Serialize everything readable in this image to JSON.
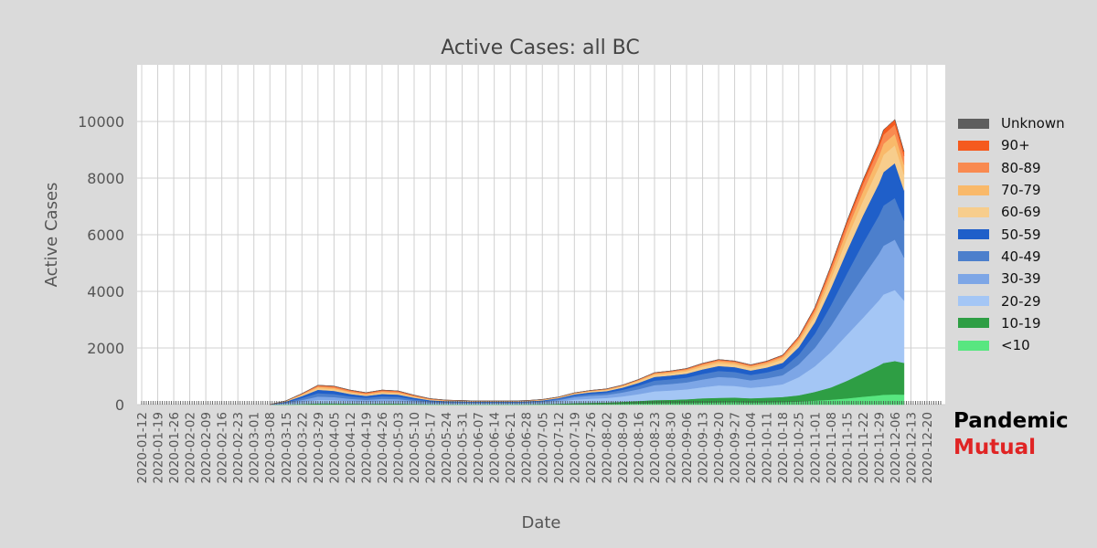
{
  "chart_data": {
    "type": "area",
    "stacked": true,
    "title": "Active Cases: all BC",
    "xlabel": "Date",
    "ylabel": "Active Cases",
    "ylim": [
      0,
      12000
    ],
    "y_ticks": [
      0,
      2000,
      4000,
      6000,
      8000,
      10000
    ],
    "x_start": "2020-01-12",
    "x_end": "2020-12-26",
    "x_tick_labels": [
      "2020-01-12",
      "2020-01-19",
      "2020-01-26",
      "2020-02-02",
      "2020-02-09",
      "2020-02-16",
      "2020-02-23",
      "2020-03-01",
      "2020-03-08",
      "2020-03-15",
      "2020-03-22",
      "2020-03-29",
      "2020-04-05",
      "2020-04-12",
      "2020-04-19",
      "2020-04-26",
      "2020-05-03",
      "2020-05-10",
      "2020-05-17",
      "2020-05-24",
      "2020-05-31",
      "2020-06-07",
      "2020-06-14",
      "2020-06-21",
      "2020-06-28",
      "2020-07-05",
      "2020-07-12",
      "2020-07-19",
      "2020-07-26",
      "2020-08-02",
      "2020-08-09",
      "2020-08-16",
      "2020-08-23",
      "2020-08-30",
      "2020-09-06",
      "2020-09-13",
      "2020-09-20",
      "2020-09-27",
      "2020-10-04",
      "2020-10-11",
      "2020-10-18",
      "2020-10-25",
      "2020-11-01",
      "2020-11-08",
      "2020-11-15",
      "2020-11-22",
      "2020-11-29",
      "2020-12-06",
      "2020-12-13",
      "2020-12-20"
    ],
    "grid": true,
    "legend_position": "right",
    "x_dates": [
      "2020-03-08",
      "2020-03-15",
      "2020-03-22",
      "2020-03-29",
      "2020-04-05",
      "2020-04-12",
      "2020-04-19",
      "2020-04-26",
      "2020-05-03",
      "2020-05-10",
      "2020-05-17",
      "2020-05-24",
      "2020-05-31",
      "2020-06-07",
      "2020-06-14",
      "2020-06-21",
      "2020-06-28",
      "2020-07-05",
      "2020-07-12",
      "2020-07-19",
      "2020-07-26",
      "2020-08-02",
      "2020-08-09",
      "2020-08-16",
      "2020-08-23",
      "2020-08-30",
      "2020-09-06",
      "2020-09-13",
      "2020-09-20",
      "2020-09-27",
      "2020-10-04",
      "2020-10-11",
      "2020-10-18",
      "2020-10-25",
      "2020-11-01",
      "2020-11-08",
      "2020-11-15",
      "2020-11-22",
      "2020-11-29",
      "2020-12-01",
      "2020-12-06",
      "2020-12-10"
    ],
    "series": [
      {
        "name": "<10",
        "color": "#58e680",
        "values": [
          0,
          3,
          8,
          15,
          16,
          12,
          10,
          12,
          12,
          8,
          5,
          4,
          4,
          4,
          4,
          4,
          5,
          6,
          8,
          12,
          15,
          20,
          30,
          40,
          50,
          55,
          60,
          70,
          80,
          85,
          75,
          80,
          90,
          110,
          140,
          175,
          220,
          280,
          330,
          350,
          360,
          355
        ]
      },
      {
        "name": "10-19",
        "color": "#2e9e44",
        "values": [
          0,
          5,
          15,
          30,
          30,
          25,
          20,
          25,
          24,
          16,
          10,
          8,
          8,
          8,
          8,
          8,
          10,
          15,
          25,
          40,
          50,
          55,
          70,
          90,
          110,
          115,
          130,
          155,
          160,
          165,
          150,
          165,
          180,
          220,
          310,
          430,
          620,
          830,
          1050,
          1120,
          1180,
          1120
        ]
      },
      {
        "name": "20-29",
        "color": "#a4c6f5",
        "values": [
          0,
          25,
          70,
          120,
          110,
          85,
          70,
          85,
          80,
          55,
          35,
          30,
          30,
          28,
          28,
          28,
          30,
          40,
          75,
          125,
          145,
          160,
          190,
          240,
          310,
          330,
          350,
          390,
          440,
          410,
          370,
          400,
          450,
          640,
          900,
          1250,
          1620,
          1950,
          2300,
          2420,
          2510,
          2200
        ]
      },
      {
        "name": "30-39",
        "color": "#7da6e6",
        "values": [
          0,
          25,
          70,
          120,
          110,
          85,
          70,
          85,
          80,
          55,
          35,
          30,
          30,
          26,
          26,
          26,
          28,
          35,
          55,
          85,
          105,
          110,
          140,
          175,
          220,
          230,
          245,
          275,
          300,
          290,
          265,
          285,
          320,
          450,
          650,
          920,
          1200,
          1450,
          1650,
          1720,
          1780,
          1520
        ]
      },
      {
        "name": "40-49",
        "color": "#4c7fcc",
        "values": [
          0,
          25,
          70,
          120,
          110,
          85,
          70,
          85,
          80,
          55,
          35,
          25,
          22,
          20,
          20,
          20,
          22,
          28,
          35,
          55,
          65,
          72,
          95,
          125,
          160,
          165,
          170,
          195,
          210,
          205,
          190,
          210,
          240,
          340,
          500,
          730,
          960,
          1180,
          1350,
          1420,
          1470,
          1310
        ]
      },
      {
        "name": "50-59",
        "color": "#1f5fc9",
        "values": [
          0,
          25,
          70,
          120,
          110,
          85,
          70,
          85,
          80,
          55,
          35,
          25,
          20,
          18,
          18,
          18,
          20,
          25,
          30,
          45,
          55,
          60,
          75,
          100,
          130,
          135,
          140,
          160,
          175,
          170,
          155,
          170,
          200,
          270,
          400,
          600,
          800,
          980,
          1130,
          1180,
          1230,
          1060
        ]
      },
      {
        "name": "60-69",
        "color": "#f7cd8c",
        "values": [
          0,
          12,
          35,
          60,
          60,
          45,
          35,
          45,
          42,
          30,
          18,
          14,
          12,
          10,
          10,
          10,
          12,
          14,
          18,
          25,
          30,
          35,
          40,
          55,
          70,
          72,
          80,
          95,
          100,
          95,
          90,
          100,
          120,
          160,
          220,
          330,
          440,
          520,
          590,
          610,
          630,
          560
        ]
      },
      {
        "name": "70-79",
        "color": "#f9b96a",
        "values": [
          0,
          8,
          25,
          45,
          45,
          35,
          28,
          35,
          32,
          22,
          14,
          10,
          8,
          7,
          7,
          7,
          8,
          10,
          12,
          16,
          20,
          24,
          28,
          36,
          45,
          48,
          55,
          65,
          70,
          65,
          60,
          68,
          80,
          110,
          150,
          220,
          290,
          330,
          370,
          390,
          400,
          350
        ]
      },
      {
        "name": "80-89",
        "color": "#f98a50",
        "values": [
          0,
          5,
          20,
          40,
          45,
          40,
          35,
          40,
          38,
          28,
          17,
          10,
          8,
          6,
          6,
          6,
          6,
          7,
          8,
          10,
          12,
          14,
          16,
          20,
          25,
          28,
          32,
          38,
          40,
          38,
          36,
          40,
          48,
          70,
          100,
          150,
          210,
          260,
          300,
          320,
          330,
          300
        ]
      },
      {
        "name": "90+",
        "color": "#f55a1e",
        "values": [
          0,
          2,
          8,
          15,
          18,
          18,
          16,
          18,
          17,
          12,
          8,
          4,
          3,
          3,
          3,
          3,
          3,
          3,
          3,
          4,
          5,
          6,
          7,
          8,
          10,
          12,
          14,
          16,
          18,
          17,
          16,
          18,
          22,
          35,
          55,
          80,
          110,
          140,
          160,
          170,
          180,
          165
        ]
      },
      {
        "name": "Unknown",
        "color": "#5e5e5e",
        "values": [
          0,
          0,
          0,
          0,
          0,
          0,
          0,
          0,
          0,
          0,
          0,
          0,
          0,
          0,
          0,
          0,
          0,
          0,
          0,
          0,
          0,
          0,
          0,
          0,
          0,
          0,
          0,
          0,
          0,
          0,
          0,
          0,
          0,
          0,
          0,
          0,
          0,
          0,
          0,
          0,
          0,
          0
        ]
      }
    ],
    "legend": [
      "Unknown",
      "90+",
      "80-89",
      "70-79",
      "60-69",
      "50-59",
      "40-49",
      "30-39",
      "20-29",
      "10-19",
      "<10"
    ]
  },
  "brand": {
    "line1": "Pandemic",
    "line2": "Mutual"
  },
  "colors": {
    "background": "#dadada",
    "plot_bg": "#ffffff",
    "brand_red": "#e02424"
  }
}
